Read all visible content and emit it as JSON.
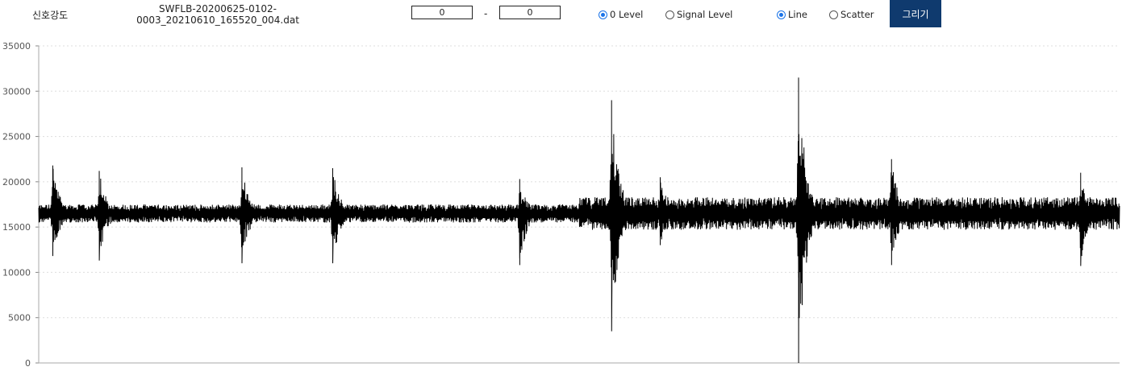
{
  "header": {
    "title": "신호강도",
    "filename_line1": "SWFLB-20200625-0102-",
    "filename_line2": "0003_20210610_165520_004.dat",
    "range_start": "0",
    "range_separator": "-",
    "range_end": "0",
    "baseline_options": [
      {
        "label": "0 Level",
        "selected": true
      },
      {
        "label": "Signal Level",
        "selected": false
      }
    ],
    "plot_style_options": [
      {
        "label": "Line",
        "selected": true
      },
      {
        "label": "Scatter",
        "selected": false
      }
    ],
    "draw_button_label": "그리기"
  },
  "colors": {
    "signal": "#000000",
    "button": "#0f3a6e",
    "radio_accent": "#1a73e8",
    "grid": "#dddddd"
  },
  "chart_data": {
    "type": "line",
    "title": "",
    "xlabel": "",
    "ylabel": "",
    "ylim": [
      0,
      35000
    ],
    "yticks": [
      0,
      5000,
      10000,
      15000,
      20000,
      25000,
      30000,
      35000
    ],
    "ytick_labels": [
      "0",
      "5000",
      "10000",
      "15000",
      "20000",
      "25000",
      "30000",
      "35000"
    ],
    "grid": "horizontal dotted",
    "xlim": [
      0,
      1000
    ],
    "baseline_mean": 16500,
    "noise_segments": [
      {
        "x_start": 0,
        "x_end": 500,
        "amplitude": 1000
      },
      {
        "x_start": 500,
        "x_end": 1000,
        "amplitude": 1800
      }
    ],
    "bursts": [
      {
        "x": 13,
        "max": 21800,
        "min": 11800
      },
      {
        "x": 56,
        "max": 21200,
        "min": 11300
      },
      {
        "x": 188,
        "max": 21600,
        "min": 11000
      },
      {
        "x": 272,
        "max": 21500,
        "min": 11000
      },
      {
        "x": 445,
        "max": 20300,
        "min": 10800
      },
      {
        "x": 530,
        "max": 29000,
        "min": 3500
      },
      {
        "x": 575,
        "max": 20500,
        "min": 13000
      },
      {
        "x": 703,
        "max": 31500,
        "min": 0
      },
      {
        "x": 789,
        "max": 22500,
        "min": 10800
      },
      {
        "x": 964,
        "max": 21000,
        "min": 10700
      }
    ]
  }
}
